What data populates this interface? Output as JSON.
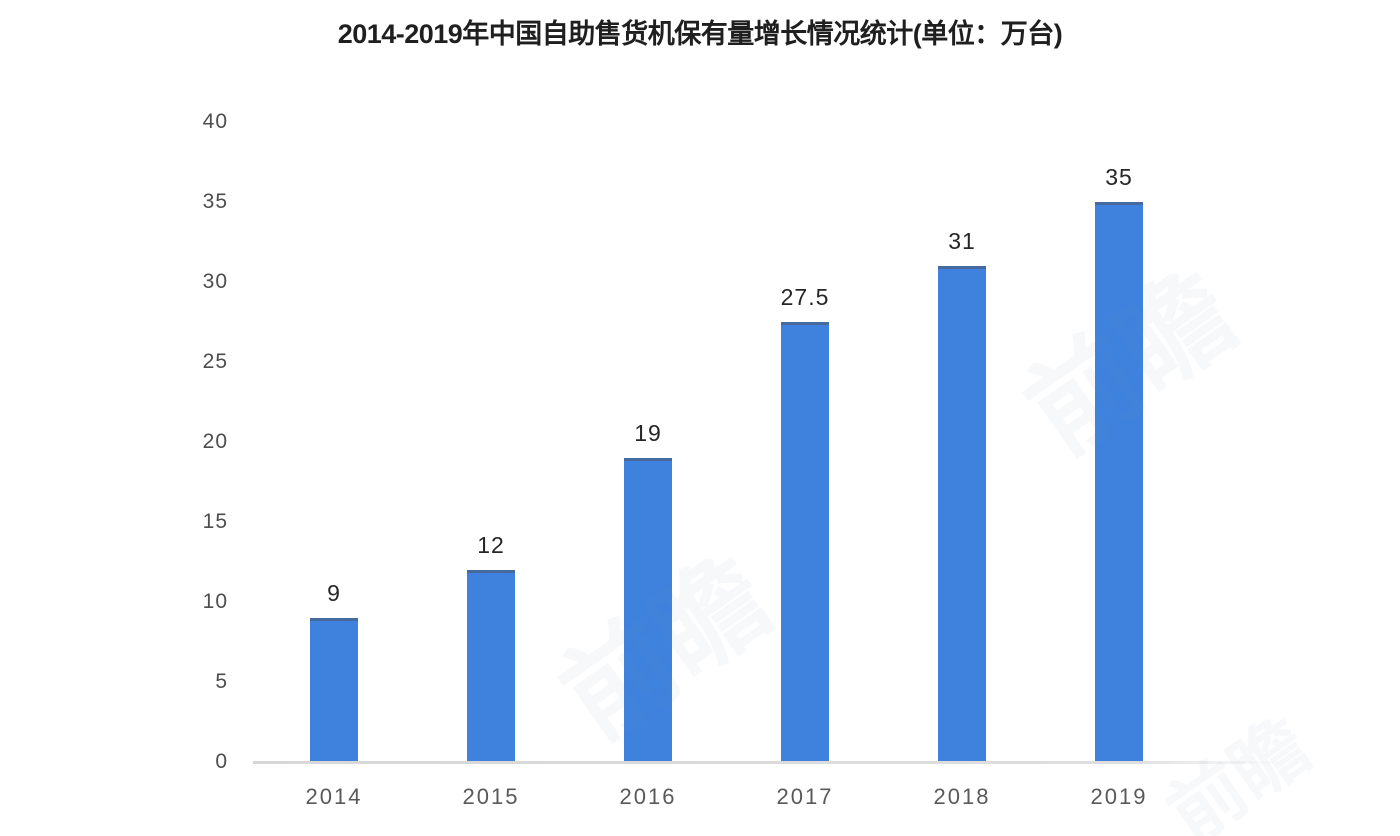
{
  "chart_data": {
    "type": "bar",
    "title": "2014-2019年中国自助售货机保有量增长情况统计(单位：万台)",
    "categories": [
      "2014",
      "2015",
      "2016",
      "2017",
      "2018",
      "2019"
    ],
    "values": [
      9,
      12,
      19,
      27.5,
      31,
      35
    ],
    "xlabel": "",
    "ylabel": "",
    "ylim": [
      0,
      40
    ],
    "yticks": [
      0,
      5,
      10,
      15,
      20,
      25,
      30,
      35,
      40
    ],
    "grid": false,
    "legend_position": "none",
    "bar_color": "#3e82de",
    "axis_line_color": "#d9d9d9",
    "title_color": "#1f1f1f",
    "value_label_color": "#262626",
    "ytick_color": "#4d4d4d",
    "xtick_color": "#595959"
  },
  "watermark": {
    "text": "前瞻",
    "color": "#7f96b5"
  }
}
